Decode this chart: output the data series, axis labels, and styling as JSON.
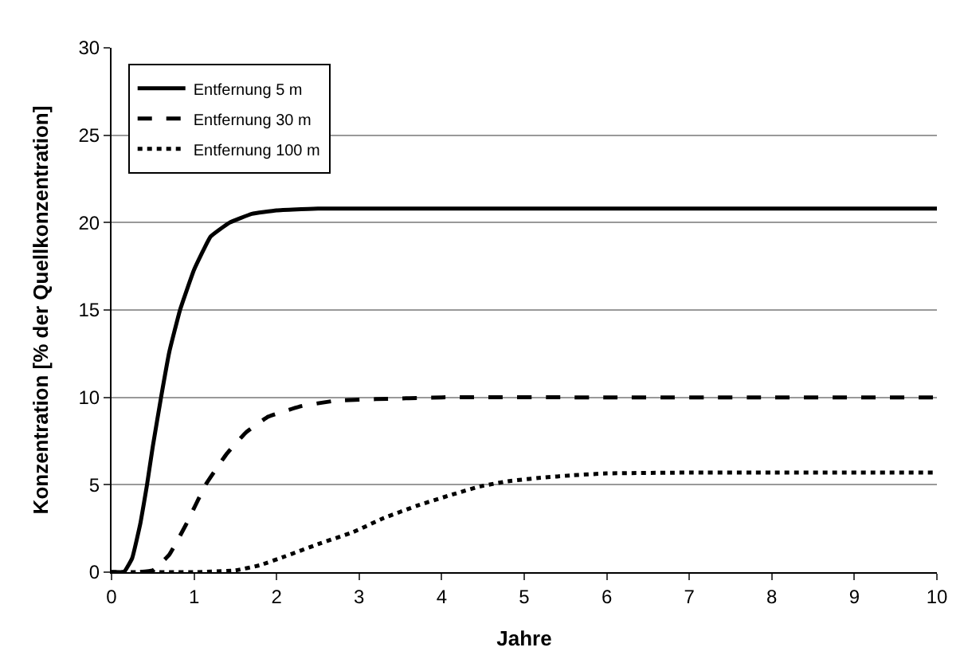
{
  "chart_data": {
    "type": "line",
    "xlabel": "Jahre",
    "ylabel": "Konzentration [% der Quellkonzentration]",
    "xlim": [
      0,
      10
    ],
    "xticks": [
      0,
      1,
      2,
      3,
      4,
      5,
      6,
      7,
      8,
      9,
      10
    ],
    "ylim": [
      0,
      30
    ],
    "yticks": [
      0,
      5,
      10,
      15,
      20,
      25,
      30
    ],
    "grid": "y",
    "legend": "top left",
    "marker": "none",
    "series": [
      {
        "name": "Entfernung 5 m",
        "color": "#000000",
        "line_style": "solid",
        "x": [
          0,
          0.15,
          0.25,
          0.35,
          0.43,
          0.5,
          0.6,
          0.7,
          0.83,
          1.0,
          1.2,
          1.43,
          1.7,
          2.0,
          2.5,
          3,
          4,
          6,
          8,
          10
        ],
        "values": [
          0,
          0,
          0.8,
          2.8,
          5,
          7.2,
          10,
          12.6,
          15,
          17.3,
          19.2,
          20,
          20.5,
          20.7,
          20.8,
          20.8,
          20.8,
          20.8,
          20.8,
          20.8
        ]
      },
      {
        "name": "Entfernung 30 m",
        "color": "#000000",
        "line_style": "dashed",
        "x": [
          0,
          0.3,
          0.5,
          0.7,
          0.9,
          1.14,
          1.4,
          1.63,
          1.9,
          2.3,
          2.7,
          3.2,
          4,
          6,
          8,
          10
        ],
        "values": [
          0,
          0,
          0.1,
          1,
          2.7,
          5,
          6.8,
          8,
          8.9,
          9.5,
          9.8,
          9.9,
          10,
          10,
          10,
          10
        ]
      },
      {
        "name": "Entfernung 100 m",
        "color": "#000000",
        "line_style": "dotted",
        "x": [
          0,
          1,
          1.5,
          1.8,
          2.1,
          2.5,
          2.93,
          3.3,
          3.7,
          4.1,
          4.46,
          4.8,
          5.2,
          5.6,
          6,
          7,
          8,
          10
        ],
        "values": [
          0,
          0,
          0.1,
          0.4,
          0.9,
          1.6,
          2.3,
          3.1,
          3.8,
          4.4,
          4.9,
          5.2,
          5.4,
          5.55,
          5.65,
          5.7,
          5.7,
          5.7
        ]
      }
    ]
  }
}
